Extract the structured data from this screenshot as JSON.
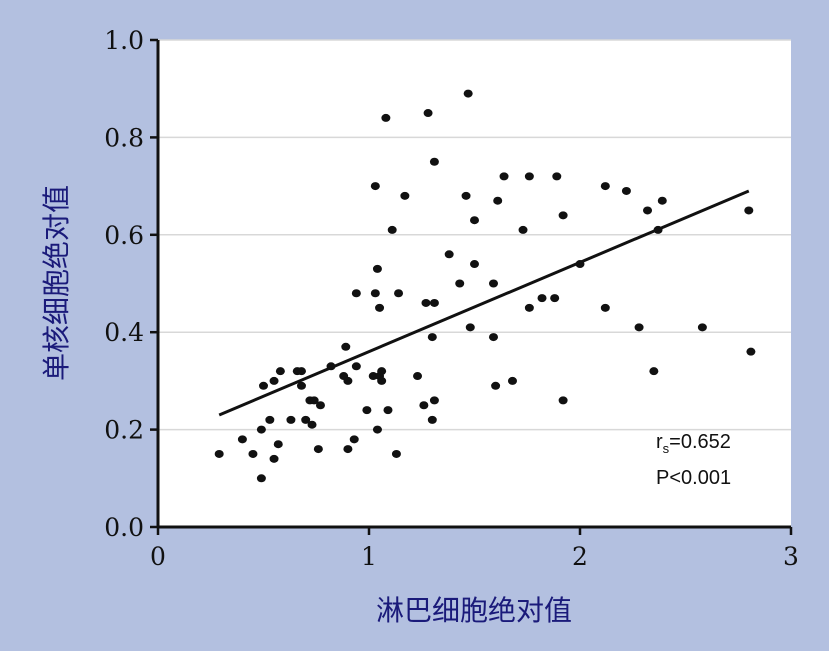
{
  "chart_data": {
    "type": "scatter",
    "xlabel": "淋巴细胞绝对值",
    "ylabel": "单核细胞绝对值",
    "xlim": [
      0,
      3
    ],
    "ylim": [
      0,
      1.0
    ],
    "x_ticks": [
      "0",
      "1",
      "2",
      "3"
    ],
    "y_ticks": [
      "0.0",
      "0.2",
      "0.4",
      "0.6",
      "0.8",
      "1.0"
    ],
    "grid": "horizontal",
    "annotations": {
      "rs_symbol": "r",
      "rs_subscript": "s",
      "rs_value": "=0.652",
      "p_text": "P<0.001"
    },
    "trendline": {
      "x": [
        0.29,
        2.8
      ],
      "y": [
        0.23,
        0.69
      ]
    },
    "points": [
      [
        0.29,
        0.15
      ],
      [
        0.4,
        0.18
      ],
      [
        0.45,
        0.15
      ],
      [
        0.49,
        0.1
      ],
      [
        0.49,
        0.2
      ],
      [
        0.5,
        0.29
      ],
      [
        0.53,
        0.22
      ],
      [
        0.55,
        0.3
      ],
      [
        0.55,
        0.14
      ],
      [
        0.57,
        0.17
      ],
      [
        0.58,
        0.32
      ],
      [
        0.63,
        0.22
      ],
      [
        0.66,
        0.32
      ],
      [
        0.68,
        0.32
      ],
      [
        0.68,
        0.29
      ],
      [
        0.7,
        0.22
      ],
      [
        0.72,
        0.26
      ],
      [
        0.73,
        0.21
      ],
      [
        0.74,
        0.26
      ],
      [
        0.76,
        0.16
      ],
      [
        0.77,
        0.25
      ],
      [
        0.82,
        0.33
      ],
      [
        0.88,
        0.31
      ],
      [
        0.89,
        0.37
      ],
      [
        0.9,
        0.3
      ],
      [
        0.9,
        0.16
      ],
      [
        0.93,
        0.18
      ],
      [
        0.94,
        0.33
      ],
      [
        0.94,
        0.48
      ],
      [
        0.99,
        0.24
      ],
      [
        1.02,
        0.31
      ],
      [
        1.03,
        0.48
      ],
      [
        1.03,
        0.7
      ],
      [
        1.04,
        0.53
      ],
      [
        1.04,
        0.2
      ],
      [
        1.05,
        0.45
      ],
      [
        1.05,
        0.31
      ],
      [
        1.06,
        0.32
      ],
      [
        1.06,
        0.3
      ],
      [
        1.08,
        0.84
      ],
      [
        1.09,
        0.24
      ],
      [
        1.11,
        0.61
      ],
      [
        1.13,
        0.15
      ],
      [
        1.14,
        0.48
      ],
      [
        1.17,
        0.68
      ],
      [
        1.23,
        0.31
      ],
      [
        1.26,
        0.25
      ],
      [
        1.27,
        0.46
      ],
      [
        1.28,
        0.85
      ],
      [
        1.3,
        0.39
      ],
      [
        1.3,
        0.22
      ],
      [
        1.31,
        0.26
      ],
      [
        1.31,
        0.46
      ],
      [
        1.31,
        0.75
      ],
      [
        1.38,
        0.56
      ],
      [
        1.43,
        0.5
      ],
      [
        1.46,
        0.68
      ],
      [
        1.47,
        0.89
      ],
      [
        1.48,
        0.41
      ],
      [
        1.5,
        0.54
      ],
      [
        1.5,
        0.63
      ],
      [
        1.59,
        0.39
      ],
      [
        1.59,
        0.5
      ],
      [
        1.6,
        0.29
      ],
      [
        1.61,
        0.67
      ],
      [
        1.64,
        0.72
      ],
      [
        1.68,
        0.3
      ],
      [
        1.73,
        0.61
      ],
      [
        1.76,
        0.45
      ],
      [
        1.76,
        0.72
      ],
      [
        1.82,
        0.47
      ],
      [
        1.88,
        0.47
      ],
      [
        1.89,
        0.72
      ],
      [
        1.92,
        0.26
      ],
      [
        1.92,
        0.64
      ],
      [
        2.0,
        0.54
      ],
      [
        2.12,
        0.45
      ],
      [
        2.12,
        0.7
      ],
      [
        2.22,
        0.69
      ],
      [
        2.28,
        0.41
      ],
      [
        2.32,
        0.65
      ],
      [
        2.35,
        0.32
      ],
      [
        2.37,
        0.61
      ],
      [
        2.39,
        0.67
      ],
      [
        2.58,
        0.41
      ],
      [
        2.8,
        0.65
      ],
      [
        2.81,
        0.36
      ]
    ]
  },
  "colors": {
    "background": "#b3c0e0",
    "plot": "#ffffff",
    "grid": "#d8d8d8",
    "points": "#111111",
    "axis_title": "#1a1a7a"
  }
}
